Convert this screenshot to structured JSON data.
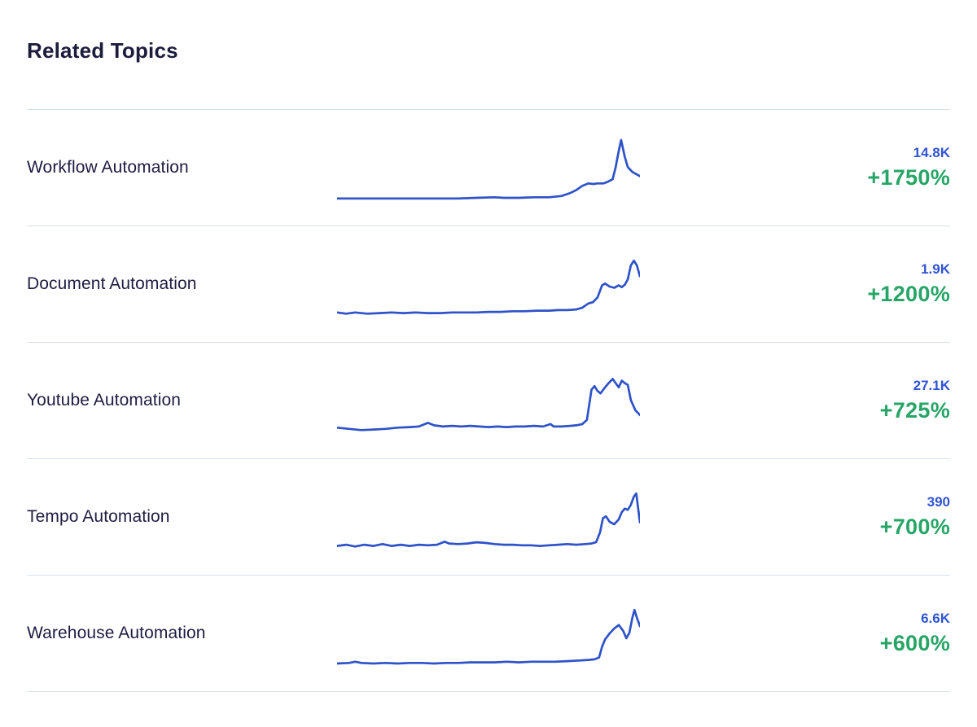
{
  "page": {
    "title": "Related Topics"
  },
  "colors": {
    "sparkline_blue": "#2e52c8",
    "value_blue": "#3054d3",
    "growth_green": "#27a566",
    "text_navy": "#1d1d42",
    "divider": "#d6e0ef",
    "background": "#ffffff"
  },
  "rows": [
    {
      "label": "Workflow Automation",
      "value": "14.8K",
      "growth": "+1750%"
    },
    {
      "label": "Document Automation",
      "value": "1.9K",
      "growth": "+1200%"
    },
    {
      "label": "Youtube Automation",
      "value": "27.1K",
      "growth": "+725%"
    },
    {
      "label": "Tempo Automation",
      "value": "390",
      "growth": "+700%"
    },
    {
      "label": "Warehouse Automation",
      "value": "6.6K",
      "growth": "+600%"
    }
  ],
  "chart_data": [
    {
      "type": "line",
      "title": "Workflow Automation trend",
      "legend": "none",
      "axes": "hidden",
      "x_range": [
        0,
        1
      ],
      "y_range": [
        0,
        1
      ],
      "points": [
        [
          0,
          0.03
        ],
        [
          0.08,
          0.03
        ],
        [
          0.16,
          0.03
        ],
        [
          0.24,
          0.03
        ],
        [
          0.32,
          0.03
        ],
        [
          0.4,
          0.03
        ],
        [
          0.46,
          0.04
        ],
        [
          0.52,
          0.05
        ],
        [
          0.55,
          0.04
        ],
        [
          0.6,
          0.04
        ],
        [
          0.65,
          0.05
        ],
        [
          0.7,
          0.05
        ],
        [
          0.74,
          0.07
        ],
        [
          0.77,
          0.12
        ],
        [
          0.79,
          0.17
        ],
        [
          0.81,
          0.24
        ],
        [
          0.83,
          0.28
        ],
        [
          0.845,
          0.27
        ],
        [
          0.86,
          0.28
        ],
        [
          0.88,
          0.28
        ],
        [
          0.895,
          0.31
        ],
        [
          0.91,
          0.35
        ],
        [
          0.92,
          0.55
        ],
        [
          0.93,
          0.82
        ],
        [
          0.938,
          1.0
        ],
        [
          0.95,
          0.72
        ],
        [
          0.96,
          0.55
        ],
        [
          0.975,
          0.47
        ],
        [
          1,
          0.4
        ]
      ]
    },
    {
      "type": "line",
      "title": "Document Automation trend",
      "legend": "none",
      "axes": "hidden",
      "x_range": [
        0,
        1
      ],
      "y_range": [
        0,
        1
      ],
      "points": [
        [
          0,
          0.07
        ],
        [
          0.03,
          0.05
        ],
        [
          0.06,
          0.07
        ],
        [
          0.1,
          0.05
        ],
        [
          0.14,
          0.06
        ],
        [
          0.18,
          0.07
        ],
        [
          0.22,
          0.06
        ],
        [
          0.26,
          0.07
        ],
        [
          0.3,
          0.06
        ],
        [
          0.34,
          0.06
        ],
        [
          0.38,
          0.07
        ],
        [
          0.42,
          0.07
        ],
        [
          0.46,
          0.07
        ],
        [
          0.5,
          0.08
        ],
        [
          0.54,
          0.08
        ],
        [
          0.58,
          0.09
        ],
        [
          0.62,
          0.09
        ],
        [
          0.66,
          0.1
        ],
        [
          0.7,
          0.1
        ],
        [
          0.73,
          0.11
        ],
        [
          0.76,
          0.11
        ],
        [
          0.79,
          0.12
        ],
        [
          0.81,
          0.15
        ],
        [
          0.83,
          0.22
        ],
        [
          0.845,
          0.24
        ],
        [
          0.86,
          0.32
        ],
        [
          0.875,
          0.52
        ],
        [
          0.885,
          0.55
        ],
        [
          0.9,
          0.5
        ],
        [
          0.915,
          0.48
        ],
        [
          0.93,
          0.52
        ],
        [
          0.94,
          0.49
        ],
        [
          0.95,
          0.53
        ],
        [
          0.96,
          0.62
        ],
        [
          0.97,
          0.85
        ],
        [
          0.98,
          0.93
        ],
        [
          0.99,
          0.85
        ],
        [
          1,
          0.67
        ]
      ]
    },
    {
      "type": "line",
      "title": "Youtube Automation trend",
      "legend": "none",
      "axes": "hidden",
      "x_range": [
        0,
        1
      ],
      "y_range": [
        0,
        1
      ],
      "points": [
        [
          0,
          0.09
        ],
        [
          0.04,
          0.07
        ],
        [
          0.08,
          0.05
        ],
        [
          0.12,
          0.06
        ],
        [
          0.16,
          0.07
        ],
        [
          0.2,
          0.09
        ],
        [
          0.24,
          0.1
        ],
        [
          0.27,
          0.11
        ],
        [
          0.3,
          0.17
        ],
        [
          0.32,
          0.13
        ],
        [
          0.35,
          0.11
        ],
        [
          0.38,
          0.12
        ],
        [
          0.41,
          0.11
        ],
        [
          0.44,
          0.12
        ],
        [
          0.47,
          0.11
        ],
        [
          0.5,
          0.1
        ],
        [
          0.53,
          0.11
        ],
        [
          0.56,
          0.1
        ],
        [
          0.59,
          0.11
        ],
        [
          0.62,
          0.11
        ],
        [
          0.65,
          0.12
        ],
        [
          0.68,
          0.11
        ],
        [
          0.705,
          0.15
        ],
        [
          0.715,
          0.11
        ],
        [
          0.74,
          0.11
        ],
        [
          0.77,
          0.12
        ],
        [
          0.79,
          0.13
        ],
        [
          0.81,
          0.15
        ],
        [
          0.825,
          0.22
        ],
        [
          0.84,
          0.72
        ],
        [
          0.85,
          0.78
        ],
        [
          0.86,
          0.7
        ],
        [
          0.87,
          0.66
        ],
        [
          0.88,
          0.73
        ],
        [
          0.895,
          0.82
        ],
        [
          0.91,
          0.9
        ],
        [
          0.92,
          0.83
        ],
        [
          0.93,
          0.76
        ],
        [
          0.94,
          0.87
        ],
        [
          0.95,
          0.83
        ],
        [
          0.96,
          0.8
        ],
        [
          0.97,
          0.55
        ],
        [
          0.985,
          0.38
        ],
        [
          1,
          0.3
        ]
      ]
    },
    {
      "type": "line",
      "title": "Tempo Automation trend",
      "legend": "none",
      "axes": "hidden",
      "x_range": [
        0,
        1
      ],
      "y_range": [
        0,
        1
      ],
      "points": [
        [
          0,
          0.06
        ],
        [
          0.03,
          0.08
        ],
        [
          0.06,
          0.05
        ],
        [
          0.09,
          0.08
        ],
        [
          0.12,
          0.06
        ],
        [
          0.15,
          0.09
        ],
        [
          0.18,
          0.06
        ],
        [
          0.21,
          0.08
        ],
        [
          0.24,
          0.06
        ],
        [
          0.27,
          0.08
        ],
        [
          0.3,
          0.07
        ],
        [
          0.33,
          0.08
        ],
        [
          0.355,
          0.13
        ],
        [
          0.37,
          0.1
        ],
        [
          0.4,
          0.09
        ],
        [
          0.43,
          0.1
        ],
        [
          0.46,
          0.12
        ],
        [
          0.49,
          0.11
        ],
        [
          0.52,
          0.09
        ],
        [
          0.55,
          0.08
        ],
        [
          0.58,
          0.08
        ],
        [
          0.61,
          0.07
        ],
        [
          0.64,
          0.07
        ],
        [
          0.67,
          0.06
        ],
        [
          0.7,
          0.07
        ],
        [
          0.73,
          0.08
        ],
        [
          0.76,
          0.09
        ],
        [
          0.79,
          0.08
        ],
        [
          0.82,
          0.09
        ],
        [
          0.84,
          0.1
        ],
        [
          0.855,
          0.12
        ],
        [
          0.868,
          0.28
        ],
        [
          0.878,
          0.52
        ],
        [
          0.888,
          0.55
        ],
        [
          0.9,
          0.46
        ],
        [
          0.915,
          0.42
        ],
        [
          0.93,
          0.5
        ],
        [
          0.94,
          0.62
        ],
        [
          0.95,
          0.68
        ],
        [
          0.96,
          0.66
        ],
        [
          0.97,
          0.74
        ],
        [
          0.98,
          0.88
        ],
        [
          0.988,
          0.93
        ],
        [
          1,
          0.45
        ]
      ]
    },
    {
      "type": "line",
      "title": "Warehouse Automation trend",
      "legend": "none",
      "axes": "hidden",
      "x_range": [
        0,
        1
      ],
      "y_range": [
        0,
        1
      ],
      "points": [
        [
          0,
          0.04
        ],
        [
          0.04,
          0.05
        ],
        [
          0.06,
          0.07
        ],
        [
          0.08,
          0.05
        ],
        [
          0.12,
          0.04
        ],
        [
          0.16,
          0.05
        ],
        [
          0.2,
          0.04
        ],
        [
          0.24,
          0.05
        ],
        [
          0.28,
          0.05
        ],
        [
          0.32,
          0.04
        ],
        [
          0.36,
          0.05
        ],
        [
          0.4,
          0.05
        ],
        [
          0.44,
          0.06
        ],
        [
          0.48,
          0.06
        ],
        [
          0.52,
          0.06
        ],
        [
          0.56,
          0.07
        ],
        [
          0.6,
          0.06
        ],
        [
          0.64,
          0.07
        ],
        [
          0.68,
          0.07
        ],
        [
          0.72,
          0.07
        ],
        [
          0.76,
          0.08
        ],
        [
          0.8,
          0.09
        ],
        [
          0.83,
          0.1
        ],
        [
          0.85,
          0.11
        ],
        [
          0.865,
          0.14
        ],
        [
          0.875,
          0.32
        ],
        [
          0.885,
          0.44
        ],
        [
          0.9,
          0.54
        ],
        [
          0.915,
          0.62
        ],
        [
          0.93,
          0.68
        ],
        [
          0.945,
          0.58
        ],
        [
          0.955,
          0.46
        ],
        [
          0.965,
          0.55
        ],
        [
          0.975,
          0.8
        ],
        [
          0.982,
          0.93
        ],
        [
          0.99,
          0.8
        ],
        [
          1,
          0.66
        ]
      ]
    }
  ]
}
